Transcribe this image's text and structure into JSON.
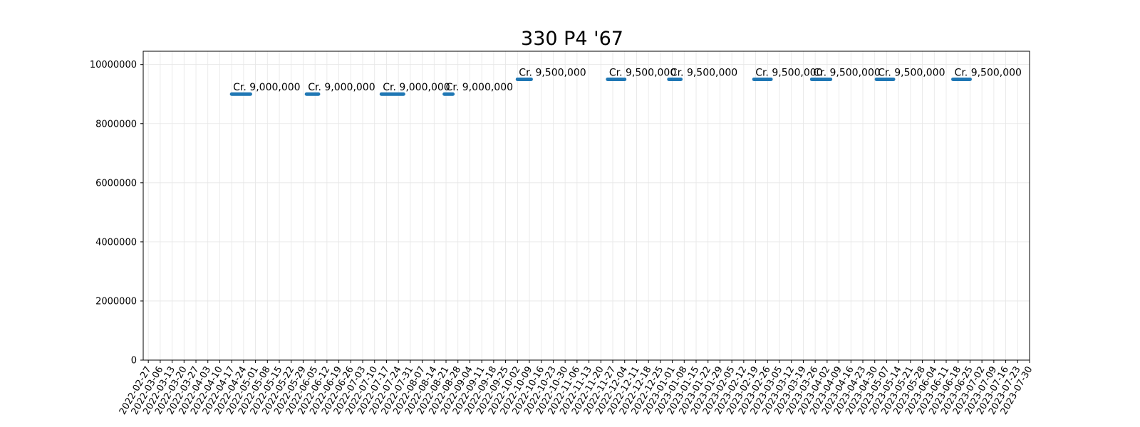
{
  "chart_data": {
    "type": "line",
    "title": "330 P4 '67",
    "xlabel": "",
    "ylabel": "",
    "grid": true,
    "ylim": [
      0,
      10450000
    ],
    "xlim": [
      "2022-02-24",
      "2023-07-30"
    ],
    "y_ticks": [
      0,
      2000000,
      4000000,
      6000000,
      8000000,
      10000000
    ],
    "y_tick_labels": [
      "0",
      "2000000",
      "4000000",
      "6000000",
      "8000000",
      "10000000"
    ],
    "x_tick_start": "2022-02-27",
    "x_tick_end": "2023-07-30",
    "x_tick_step_days": 7,
    "series_color": "#1f77b4",
    "series": [
      {
        "x_start": "2022-04-17",
        "x_end": "2022-04-28",
        "value": 9000000,
        "label": "Cr. 9,000,000"
      },
      {
        "x_start": "2022-05-31",
        "x_end": "2022-06-07",
        "value": 9000000,
        "label": "Cr. 9,000,000"
      },
      {
        "x_start": "2022-07-14",
        "x_end": "2022-07-27",
        "value": 9000000,
        "label": "Cr. 9,000,000"
      },
      {
        "x_start": "2022-08-20",
        "x_end": "2022-08-25",
        "value": 9000000,
        "label": "Cr. 9,000,000"
      },
      {
        "x_start": "2022-10-02",
        "x_end": "2022-10-10",
        "value": 9500000,
        "label": "Cr. 9,500,000"
      },
      {
        "x_start": "2022-11-24",
        "x_end": "2022-12-04",
        "value": 9500000,
        "label": "Cr. 9,500,000"
      },
      {
        "x_start": "2022-12-30",
        "x_end": "2023-01-06",
        "value": 9500000,
        "label": "Cr. 9,500,000"
      },
      {
        "x_start": "2023-02-18",
        "x_end": "2023-02-28",
        "value": 9500000,
        "label": "Cr. 9,500,000"
      },
      {
        "x_start": "2023-03-24",
        "x_end": "2023-04-04",
        "value": 9500000,
        "label": "Cr. 9,500,000"
      },
      {
        "x_start": "2023-05-01",
        "x_end": "2023-05-11",
        "value": 9500000,
        "label": "Cr. 9,500,000"
      },
      {
        "x_start": "2023-06-15",
        "x_end": "2023-06-25",
        "value": 9500000,
        "label": "Cr. 9,500,000"
      }
    ]
  }
}
